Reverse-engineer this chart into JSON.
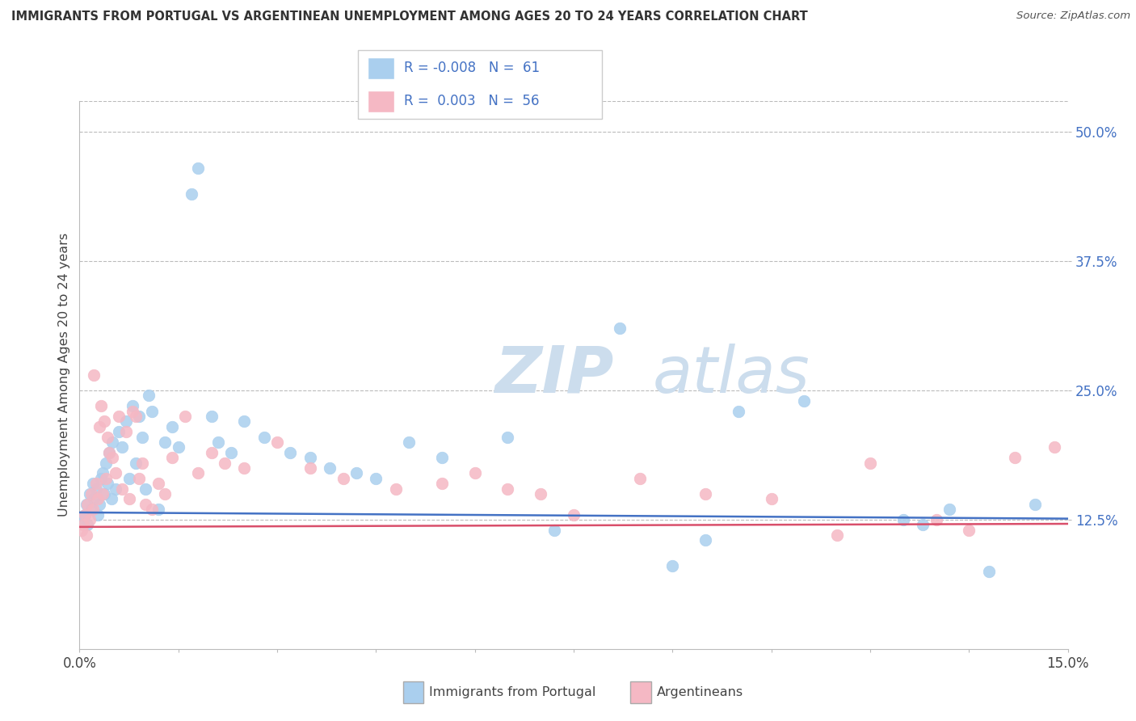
{
  "title": "IMMIGRANTS FROM PORTUGAL VS ARGENTINEAN UNEMPLOYMENT AMONG AGES 20 TO 24 YEARS CORRELATION CHART",
  "source": "Source: ZipAtlas.com",
  "ylabel": "Unemployment Among Ages 20 to 24 years",
  "xlim": [
    0.0,
    15.0
  ],
  "ylim": [
    0.0,
    53.0
  ],
  "yticks": [
    12.5,
    25.0,
    37.5,
    50.0
  ],
  "ytick_labels": [
    "12.5%",
    "25.0%",
    "37.5%",
    "50.0%"
  ],
  "xticks": [
    0.0,
    1.5,
    3.0,
    4.5,
    6.0,
    7.5,
    9.0,
    10.5,
    12.0,
    13.5,
    15.0
  ],
  "xtick_labels": [
    "0.0%",
    "",
    "",
    "",
    "",
    "",
    "",
    "",
    "",
    "",
    "15.0%"
  ],
  "legend_labels": [
    "Immigrants from Portugal",
    "Argentineans"
  ],
  "blue_R": "-0.008",
  "blue_N": "61",
  "pink_R": "0.003",
  "pink_N": "56",
  "blue_color": "#aacfee",
  "pink_color": "#f5b8c4",
  "blue_line_color": "#4472c4",
  "pink_line_color": "#d94f6b",
  "watermark_zip": "ZIP",
  "watermark_atlas": "atlas",
  "background_color": "#ffffff",
  "blue_points_x": [
    0.05,
    0.08,
    0.1,
    0.12,
    0.15,
    0.18,
    0.2,
    0.22,
    0.25,
    0.28,
    0.3,
    0.32,
    0.35,
    0.38,
    0.4,
    0.42,
    0.45,
    0.48,
    0.5,
    0.55,
    0.6,
    0.65,
    0.7,
    0.75,
    0.8,
    0.85,
    0.9,
    0.95,
    1.0,
    1.05,
    1.1,
    1.2,
    1.3,
    1.4,
    1.5,
    1.7,
    1.8,
    2.0,
    2.1,
    2.3,
    2.5,
    2.8,
    3.2,
    3.5,
    3.8,
    4.2,
    4.5,
    5.0,
    5.5,
    6.5,
    7.2,
    8.2,
    9.0,
    9.5,
    10.0,
    11.0,
    12.5,
    12.8,
    13.2,
    13.8,
    14.5
  ],
  "blue_points_y": [
    12.5,
    13.0,
    14.0,
    12.0,
    15.0,
    13.5,
    16.0,
    14.5,
    15.5,
    13.0,
    14.0,
    16.5,
    17.0,
    15.0,
    18.0,
    16.0,
    19.0,
    14.5,
    20.0,
    15.5,
    21.0,
    19.5,
    22.0,
    16.5,
    23.5,
    18.0,
    22.5,
    20.5,
    15.5,
    24.5,
    23.0,
    13.5,
    20.0,
    21.5,
    19.5,
    44.0,
    46.5,
    22.5,
    20.0,
    19.0,
    22.0,
    20.5,
    19.0,
    18.5,
    17.5,
    17.0,
    16.5,
    20.0,
    18.5,
    20.5,
    11.5,
    31.0,
    8.0,
    10.5,
    23.0,
    24.0,
    12.5,
    12.0,
    13.5,
    7.5,
    14.0
  ],
  "pink_points_x": [
    0.03,
    0.06,
    0.08,
    0.1,
    0.12,
    0.15,
    0.18,
    0.2,
    0.22,
    0.25,
    0.28,
    0.3,
    0.32,
    0.35,
    0.38,
    0.4,
    0.42,
    0.45,
    0.5,
    0.55,
    0.6,
    0.65,
    0.7,
    0.75,
    0.8,
    0.85,
    0.9,
    0.95,
    1.0,
    1.1,
    1.2,
    1.3,
    1.4,
    1.6,
    1.8,
    2.0,
    2.2,
    2.5,
    3.0,
    3.5,
    4.0,
    4.8,
    5.5,
    6.0,
    6.5,
    7.0,
    7.5,
    8.5,
    9.5,
    10.5,
    11.5,
    12.0,
    13.0,
    13.5,
    14.2,
    14.8
  ],
  "pink_points_y": [
    11.5,
    12.0,
    13.0,
    11.0,
    14.0,
    12.5,
    15.0,
    13.5,
    26.5,
    16.0,
    14.5,
    21.5,
    23.5,
    15.0,
    22.0,
    16.5,
    20.5,
    19.0,
    18.5,
    17.0,
    22.5,
    15.5,
    21.0,
    14.5,
    23.0,
    22.5,
    16.5,
    18.0,
    14.0,
    13.5,
    16.0,
    15.0,
    18.5,
    22.5,
    17.0,
    19.0,
    18.0,
    17.5,
    20.0,
    17.5,
    16.5,
    15.5,
    16.0,
    17.0,
    15.5,
    15.0,
    13.0,
    16.5,
    15.0,
    14.5,
    11.0,
    18.0,
    12.5,
    11.5,
    18.5,
    19.5
  ]
}
